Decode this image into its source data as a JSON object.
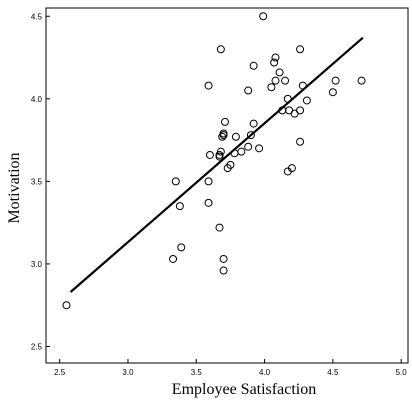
{
  "chart_data": {
    "type": "scatter",
    "title": "",
    "xlabel": "Employee Satisfaction",
    "ylabel": "Motivation",
    "xlim": [
      2.4,
      5.05
    ],
    "ylim": [
      2.4,
      4.55
    ],
    "xticks": [
      "2.5",
      "3.0",
      "3.5",
      "4.0",
      "4.5",
      "5.0"
    ],
    "yticks": [
      "2.5",
      "3.0",
      "3.5",
      "4.0",
      "4.5"
    ],
    "grid": false,
    "series": [
      {
        "marker": "open-circle",
        "points": [
          [
            2.55,
            2.75
          ],
          [
            3.33,
            3.03
          ],
          [
            3.35,
            3.5
          ],
          [
            3.38,
            3.35
          ],
          [
            3.39,
            3.1
          ],
          [
            3.59,
            3.37
          ],
          [
            3.59,
            3.5
          ],
          [
            3.6,
            3.66
          ],
          [
            3.59,
            4.08
          ],
          [
            3.67,
            3.66
          ],
          [
            3.67,
            3.65
          ],
          [
            3.68,
            3.68
          ],
          [
            3.69,
            3.77
          ],
          [
            3.7,
            3.79
          ],
          [
            3.7,
            3.78
          ],
          [
            3.71,
            3.86
          ],
          [
            3.68,
            4.3
          ],
          [
            3.67,
            3.22
          ],
          [
            3.7,
            3.03
          ],
          [
            3.7,
            2.96
          ],
          [
            3.73,
            3.58
          ],
          [
            3.75,
            3.6
          ],
          [
            3.78,
            3.67
          ],
          [
            3.79,
            3.77
          ],
          [
            3.83,
            3.68
          ],
          [
            3.88,
            3.71
          ],
          [
            3.88,
            4.05
          ],
          [
            3.9,
            3.78
          ],
          [
            3.92,
            3.85
          ],
          [
            3.92,
            4.2
          ],
          [
            3.96,
            3.7
          ],
          [
            3.99,
            4.5
          ],
          [
            4.05,
            4.07
          ],
          [
            4.07,
            4.22
          ],
          [
            4.08,
            4.25
          ],
          [
            4.08,
            4.11
          ],
          [
            4.11,
            4.16
          ],
          [
            4.13,
            3.93
          ],
          [
            4.15,
            4.11
          ],
          [
            4.17,
            4.0
          ],
          [
            4.18,
            3.93
          ],
          [
            4.17,
            3.56
          ],
          [
            4.2,
            3.58
          ],
          [
            4.22,
            3.91
          ],
          [
            4.26,
            3.74
          ],
          [
            4.26,
            3.93
          ],
          [
            4.26,
            4.3
          ],
          [
            4.28,
            4.08
          ],
          [
            4.31,
            3.99
          ],
          [
            4.5,
            4.04
          ],
          [
            4.52,
            4.11
          ],
          [
            4.71,
            4.11
          ]
        ]
      }
    ],
    "fit_line": {
      "x": [
        2.58,
        4.72
      ],
      "y": [
        2.83,
        4.37
      ]
    }
  }
}
